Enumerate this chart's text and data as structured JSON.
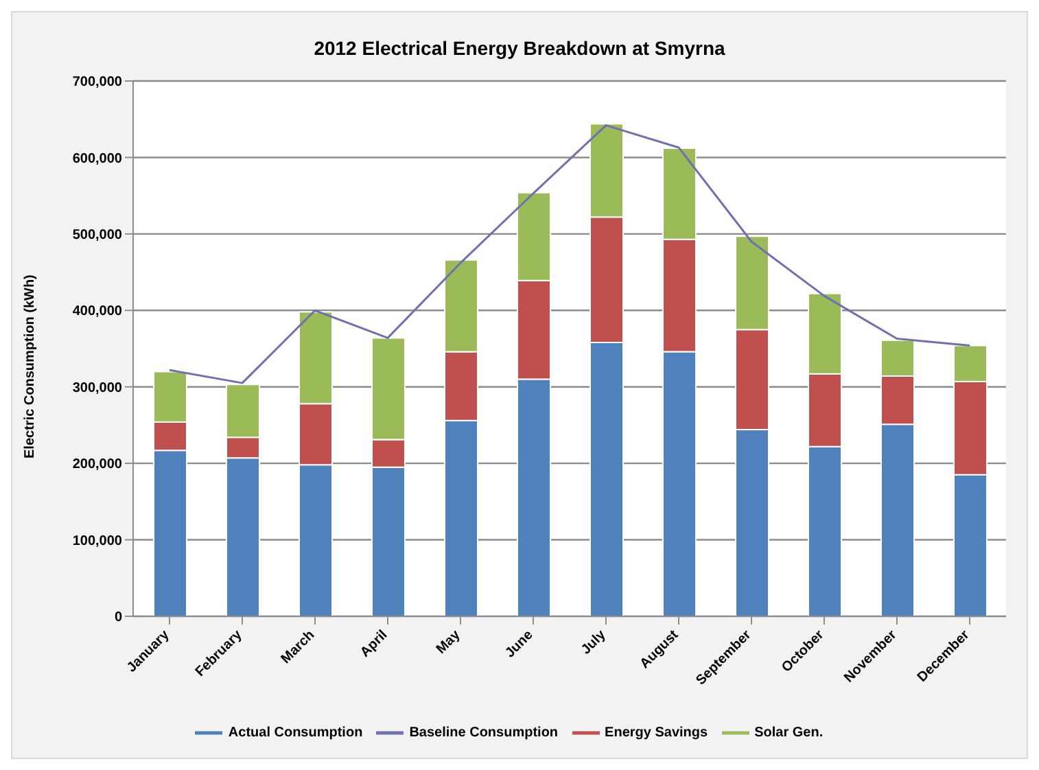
{
  "chart_data": {
    "type": "bar",
    "title": "2012 Electrical Energy Breakdown at Smyrna",
    "ylabel": "Electric Consumption (kWh)",
    "categories": [
      "January",
      "February",
      "March",
      "April",
      "May",
      "June",
      "July",
      "August",
      "September",
      "October",
      "November",
      "December"
    ],
    "stacked": true,
    "ylim": [
      0,
      700000
    ],
    "yticks": [
      {
        "value": 0,
        "label": "0"
      },
      {
        "value": 100000,
        "label": "100,000"
      },
      {
        "value": 200000,
        "label": "200,000"
      },
      {
        "value": 300000,
        "label": "300,000"
      },
      {
        "value": 400000,
        "label": "400,000"
      },
      {
        "value": 500000,
        "label": "500,000"
      },
      {
        "value": 600000,
        "label": "600,000"
      },
      {
        "value": 700000,
        "label": "700,000"
      }
    ],
    "grid": "y",
    "legend": "bottom",
    "marker": "none",
    "series": [
      {
        "name": "Actual Consumption",
        "color": "#4f81bd",
        "values": [
          217000,
          207000,
          198000,
          195000,
          256000,
          310000,
          358000,
          346000,
          244000,
          222000,
          251000,
          185000
        ]
      },
      {
        "name": "Energy Savings",
        "color": "#c0504d",
        "values": [
          37000,
          27000,
          80000,
          36000,
          90000,
          129000,
          164000,
          147000,
          131000,
          95000,
          63000,
          122000
        ]
      },
      {
        "name": "Solar Gen.",
        "color": "#9bbb59",
        "values": [
          66000,
          69000,
          120000,
          133000,
          120000,
          115000,
          122000,
          119000,
          122000,
          105000,
          47000,
          47000
        ]
      },
      {
        "name": "Baseline Consumption",
        "type": "line",
        "color": "#7070b0",
        "values": [
          322000,
          305000,
          400000,
          364000,
          462000,
          553000,
          642000,
          613000,
          490000,
          419000,
          363000,
          354000
        ]
      }
    ]
  }
}
